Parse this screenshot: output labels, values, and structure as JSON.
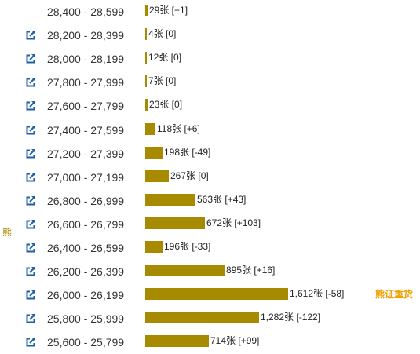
{
  "colors": {
    "bar": "#a68a00",
    "side_label": "#a68a00",
    "tag": "#f0a000",
    "icon": "#1f5ea8"
  },
  "side_label": "熊",
  "tag_label": "熊证重货",
  "rows": [
    {
      "range": "28,400 - 28,599",
      "count": 29,
      "label": "29张 [+1]",
      "has_icon": false
    },
    {
      "range": "28,200 - 28,399",
      "count": 4,
      "label": "4张 [0]",
      "has_icon": true
    },
    {
      "range": "28,000 - 28,199",
      "count": 12,
      "label": "12张 [0]",
      "has_icon": true
    },
    {
      "range": "27,800 - 27,999",
      "count": 7,
      "label": "7张 [0]",
      "has_icon": true
    },
    {
      "range": "27,600 - 27,799",
      "count": 23,
      "label": "23张 [0]",
      "has_icon": true
    },
    {
      "range": "27,400 - 27,599",
      "count": 118,
      "label": "118张 [+6]",
      "has_icon": true
    },
    {
      "range": "27,200 - 27,399",
      "count": 198,
      "label": "198张 [-49]",
      "has_icon": true
    },
    {
      "range": "27,000 - 27,199",
      "count": 267,
      "label": "267张 [0]",
      "has_icon": true
    },
    {
      "range": "26,800 - 26,999",
      "count": 563,
      "label": "563张 [+43]",
      "has_icon": true
    },
    {
      "range": "26,600 - 26,799",
      "count": 672,
      "label": "672张 [+103]",
      "has_icon": true
    },
    {
      "range": "26,400 - 26,599",
      "count": 196,
      "label": "196张 [-33]",
      "has_icon": true
    },
    {
      "range": "26,200 - 26,399",
      "count": 895,
      "label": "895张 [+16]",
      "has_icon": true
    },
    {
      "range": "26,000 - 26,199",
      "count": 1612,
      "label": "1,612张 [-58]",
      "has_icon": true,
      "tagged": true
    },
    {
      "range": "25,800 - 25,999",
      "count": 1282,
      "label": "1,282张 [-122]",
      "has_icon": true
    },
    {
      "range": "25,600 - 25,799",
      "count": 714,
      "label": "714张 [+99]",
      "has_icon": true
    }
  ]
}
